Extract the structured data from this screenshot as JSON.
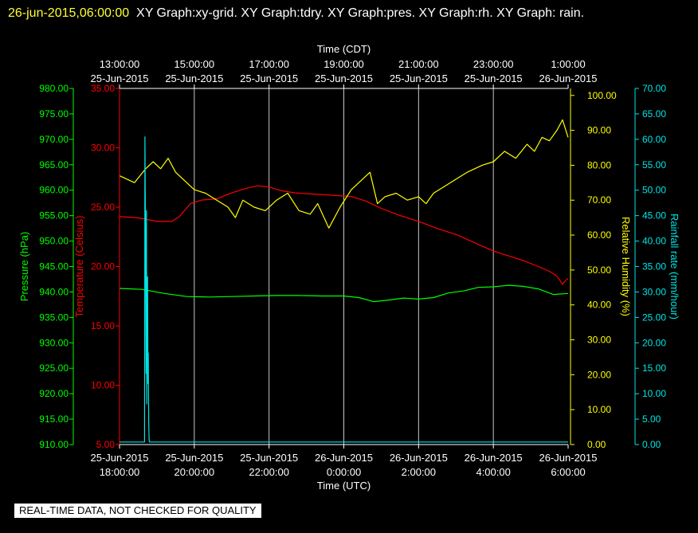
{
  "header": {
    "timestamp": "26-jun-2015,06:00:00",
    "graphs": "XY Graph:xy-grid.  XY Graph:tdry.  XY Graph:pres.  XY Graph:rh.  XY Graph: rain."
  },
  "footer": {
    "quality_note": "REAL-TIME DATA, NOT CHECKED FOR QUALITY"
  },
  "colors": {
    "pressure": "#00ff00",
    "temperature": "#ff0000",
    "humidity": "#ffff00",
    "rainfall": "#00e5e5",
    "grid": "#c8c8c8",
    "axis_text": "#ffffff",
    "background": "#000000"
  },
  "chart_data": {
    "type": "line",
    "x_unit": "hours since 25-Jun-2015 18:00:00 UTC",
    "xlim": [
      0,
      12
    ],
    "top_axis": {
      "label": "Time (CDT)",
      "ticks": [
        {
          "t": 0,
          "time": "13:00:00",
          "date": "25-Jun-2015"
        },
        {
          "t": 2,
          "time": "15:00:00",
          "date": "25-Jun-2015"
        },
        {
          "t": 4,
          "time": "17:00:00",
          "date": "25-Jun-2015"
        },
        {
          "t": 6,
          "time": "19:00:00",
          "date": "25-Jun-2015"
        },
        {
          "t": 8,
          "time": "21:00:00",
          "date": "25-Jun-2015"
        },
        {
          "t": 10,
          "time": "23:00:00",
          "date": "25-Jun-2015"
        },
        {
          "t": 12,
          "time": "1:00:00",
          "date": "26-Jun-2015"
        }
      ]
    },
    "bottom_axis": {
      "label": "Time (UTC)",
      "ticks": [
        {
          "t": 0,
          "date": "25-Jun-2015",
          "time": "18:00:00"
        },
        {
          "t": 2,
          "date": "25-Jun-2015",
          "time": "20:00:00"
        },
        {
          "t": 4,
          "date": "25-Jun-2015",
          "time": "22:00:00"
        },
        {
          "t": 6,
          "date": "26-Jun-2015",
          "time": "0:00:00"
        },
        {
          "t": 8,
          "date": "26-Jun-2015",
          "time": "2:00:00"
        },
        {
          "t": 10,
          "date": "26-Jun-2015",
          "time": "4:00:00"
        },
        {
          "t": 12,
          "date": "26-Jun-2015",
          "time": "6:00:00"
        }
      ]
    },
    "grid": "vertical",
    "y_axes": [
      {
        "id": "pressure",
        "label": "Pressure (hPa)",
        "range": [
          910,
          980
        ],
        "ticks": [
          "910.00",
          "915.00",
          "920.00",
          "925.00",
          "930.00",
          "935.00",
          "940.00",
          "945.00",
          "950.00",
          "955.00",
          "960.00",
          "965.00",
          "970.00",
          "975.00",
          "980.00"
        ]
      },
      {
        "id": "temperature",
        "label": "Temperature (Celsius)",
        "range": [
          5,
          35
        ],
        "ticks": [
          "5.00",
          "10.00",
          "15.00",
          "20.00",
          "25.00",
          "30.00",
          "35.00"
        ]
      },
      {
        "id": "humidity",
        "label": "Relative Humidity (%)",
        "range": [
          0,
          102
        ],
        "ticks": [
          "0.00",
          "10.00",
          "20.00",
          "30.00",
          "40.00",
          "50.00",
          "60.00",
          "70.00",
          "80.00",
          "90.00",
          "100.00"
        ]
      },
      {
        "id": "rainfall",
        "label": "Rainfall rate (mm/hour)",
        "range": [
          0,
          70
        ],
        "ticks": [
          "0.00",
          "5.00",
          "10.00",
          "15.00",
          "20.00",
          "25.00",
          "30.00",
          "35.00",
          "40.00",
          "45.00",
          "50.00",
          "55.00",
          "60.00",
          "65.00",
          "70.00"
        ]
      }
    ],
    "series": [
      {
        "id": "temperature",
        "axis": "temperature",
        "t": [
          0,
          0.5,
          1.0,
          1.4,
          1.6,
          1.9,
          2.2,
          2.6,
          3.0,
          3.4,
          3.7,
          4.0,
          4.3,
          4.7,
          5.2,
          5.7,
          6.2,
          6.6,
          7.0,
          7.5,
          8.0,
          8.5,
          9.0,
          9.5,
          10.0,
          10.4,
          10.8,
          11.2,
          11.5,
          11.7,
          11.85,
          11.95,
          12.0
        ],
        "values": [
          24.2,
          24.1,
          23.8,
          23.8,
          24.2,
          25.3,
          25.6,
          25.7,
          26.2,
          26.6,
          26.8,
          26.7,
          26.4,
          26.2,
          26.1,
          26.0,
          25.9,
          25.5,
          24.9,
          24.3,
          23.8,
          23.2,
          22.7,
          22.0,
          21.3,
          20.9,
          20.5,
          20.0,
          19.6,
          19.2,
          18.5,
          18.9,
          19.0
        ]
      },
      {
        "id": "humidity",
        "axis": "humidity",
        "t": [
          0,
          0.4,
          0.7,
          0.9,
          1.1,
          1.3,
          1.5,
          1.8,
          2.0,
          2.3,
          2.6,
          2.9,
          3.1,
          3.3,
          3.6,
          3.9,
          4.2,
          4.5,
          4.8,
          5.1,
          5.3,
          5.6,
          5.9,
          6.2,
          6.5,
          6.7,
          6.9,
          7.1,
          7.4,
          7.7,
          8.0,
          8.2,
          8.4,
          8.7,
          9.0,
          9.3,
          9.7,
          10.0,
          10.3,
          10.6,
          10.9,
          11.1,
          11.3,
          11.5,
          11.7,
          11.85,
          12.0
        ],
        "values": [
          77,
          75,
          79,
          81,
          79,
          82,
          78,
          75,
          73,
          72,
          70,
          68,
          65,
          70,
          68,
          67,
          70,
          72,
          67,
          66,
          69,
          62,
          68,
          73,
          76,
          78,
          69,
          71,
          72,
          70,
          71,
          69,
          72,
          74,
          76,
          78,
          80,
          81,
          84,
          82,
          86,
          84,
          88,
          87,
          90,
          93,
          88
        ]
      },
      {
        "id": "pressure",
        "axis": "pressure",
        "t": [
          0,
          0.6,
          1.2,
          1.8,
          2.4,
          3.0,
          3.6,
          4.2,
          4.8,
          5.4,
          6.0,
          6.4,
          6.8,
          7.2,
          7.6,
          8.0,
          8.4,
          8.8,
          9.2,
          9.6,
          10.0,
          10.4,
          10.8,
          11.2,
          11.6,
          12.0
        ],
        "values": [
          940.7,
          940.5,
          939.7,
          939.1,
          939.0,
          939.1,
          939.2,
          939.3,
          939.3,
          939.2,
          939.2,
          938.9,
          938.1,
          938.4,
          938.8,
          938.6,
          938.9,
          939.8,
          940.2,
          940.9,
          941.0,
          941.3,
          941.1,
          940.6,
          939.5,
          939.7
        ]
      },
      {
        "id": "rainfall",
        "axis": "rainfall",
        "t": [
          0,
          0.67,
          0.68,
          0.7,
          0.71,
          0.72,
          0.73,
          0.74,
          0.75,
          0.76,
          0.77,
          0.78,
          0.79,
          0.8,
          0.81,
          0.82,
          0.83,
          12.0
        ],
        "values": [
          0.5,
          0.5,
          60.5,
          35,
          14,
          46,
          8,
          30,
          33,
          12,
          18,
          5,
          1,
          0.5,
          0.5,
          0.5,
          0.5,
          0.5
        ]
      }
    ]
  }
}
